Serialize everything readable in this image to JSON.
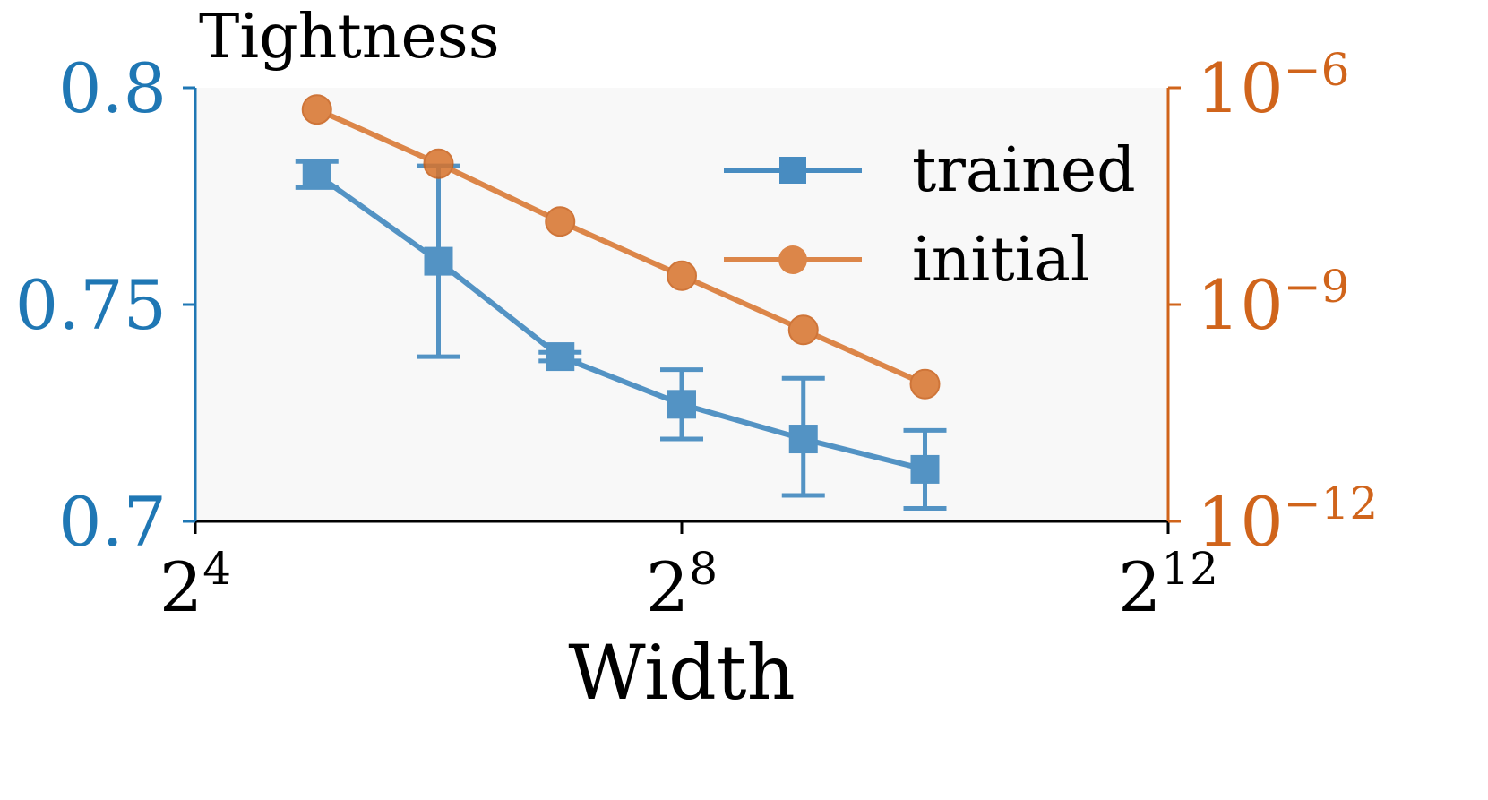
{
  "chart_data": {
    "type": "line",
    "title": "Tightness",
    "xlabel": "Width",
    "x_scale": "log2",
    "x_ticks": [
      {
        "value": 16,
        "base": "2",
        "exp": "4"
      },
      {
        "value": 256,
        "base": "2",
        "exp": "8"
      },
      {
        "value": 4096,
        "base": "2",
        "exp": "12"
      }
    ],
    "x_range": [
      16,
      4096
    ],
    "y_left": {
      "range": [
        0.7,
        0.8
      ],
      "ticks": [
        {
          "value": 0.7,
          "label": "0.7"
        },
        {
          "value": 0.75,
          "label": "0.75"
        },
        {
          "value": 0.8,
          "label": "0.8"
        }
      ],
      "color": "#1f77b4"
    },
    "y_right": {
      "scale": "log10",
      "range_exp": [
        -12,
        -6
      ],
      "ticks": [
        {
          "exp": -6,
          "base": "10",
          "exp_label": "−6"
        },
        {
          "exp": -9,
          "base": "10",
          "exp_label": "−9"
        },
        {
          "exp": -12,
          "base": "10",
          "exp_label": "−12"
        }
      ],
      "color": "#d0641b"
    },
    "series": [
      {
        "name": "trained",
        "axis": "left",
        "marker": "square",
        "color": "#2a7ab8",
        "x": [
          32,
          64,
          128,
          256,
          512,
          1024
        ],
        "y": [
          0.78,
          0.76,
          0.738,
          0.727,
          0.719,
          0.712
        ],
        "err_low": [
          0.777,
          0.738,
          0.737,
          0.719,
          0.706,
          0.703
        ],
        "err_high": [
          0.783,
          0.782,
          0.739,
          0.735,
          0.733,
          0.721
        ]
      },
      {
        "name": "initial",
        "axis": "right",
        "marker": "circle",
        "color": "#d8732b",
        "x": [
          32,
          64,
          128,
          256,
          512,
          1024
        ],
        "y_exp": [
          -6.3,
          -7.05,
          -7.85,
          -8.6,
          -9.35,
          -10.1
        ]
      }
    ],
    "legend": "upper right",
    "grid": false,
    "plot_background": "#f8f8f8"
  }
}
